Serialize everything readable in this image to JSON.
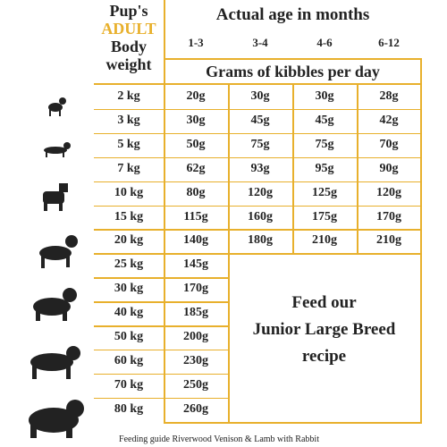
{
  "header": {
    "weight_label_lines": [
      "Pup's",
      "ADULT",
      "Body",
      "weight"
    ],
    "age_title": "Actual age  in months",
    "age_columns": [
      "1-3",
      "3-4",
      "4-6",
      "6-12"
    ],
    "unit_title": "Grams of kibbles per day"
  },
  "table": {
    "rows": [
      [
        "2 kg",
        "20g",
        "30g",
        "30g",
        "28g"
      ],
      [
        "3 kg",
        "30g",
        "45g",
        "45g",
        "42g"
      ],
      [
        "5 kg",
        "50g",
        "75g",
        "75g",
        "70g"
      ],
      [
        "7 kg",
        "62g",
        "93g",
        "95g",
        "90g"
      ],
      [
        "10 kg",
        "80g",
        "120g",
        "125g",
        "120g"
      ],
      [
        "15 kg",
        "115g",
        "160g",
        "175g",
        "170g"
      ],
      [
        "20 kg",
        "140g",
        "180g",
        "210g",
        "210g"
      ],
      [
        "25 kg",
        "145g"
      ],
      [
        "30 kg",
        "170g"
      ],
      [
        "40 kg",
        "185g"
      ],
      [
        "50 kg",
        "200g"
      ],
      [
        "60 kg",
        "230g"
      ],
      [
        "70 kg",
        "250g"
      ],
      [
        "80 kg",
        "260g"
      ]
    ],
    "note_lines": [
      "Feed our",
      "Junior Large Breed",
      "recipe"
    ]
  },
  "footer": "Feeding guide Riverwood Venison & Lamb with Rabbit"
}
